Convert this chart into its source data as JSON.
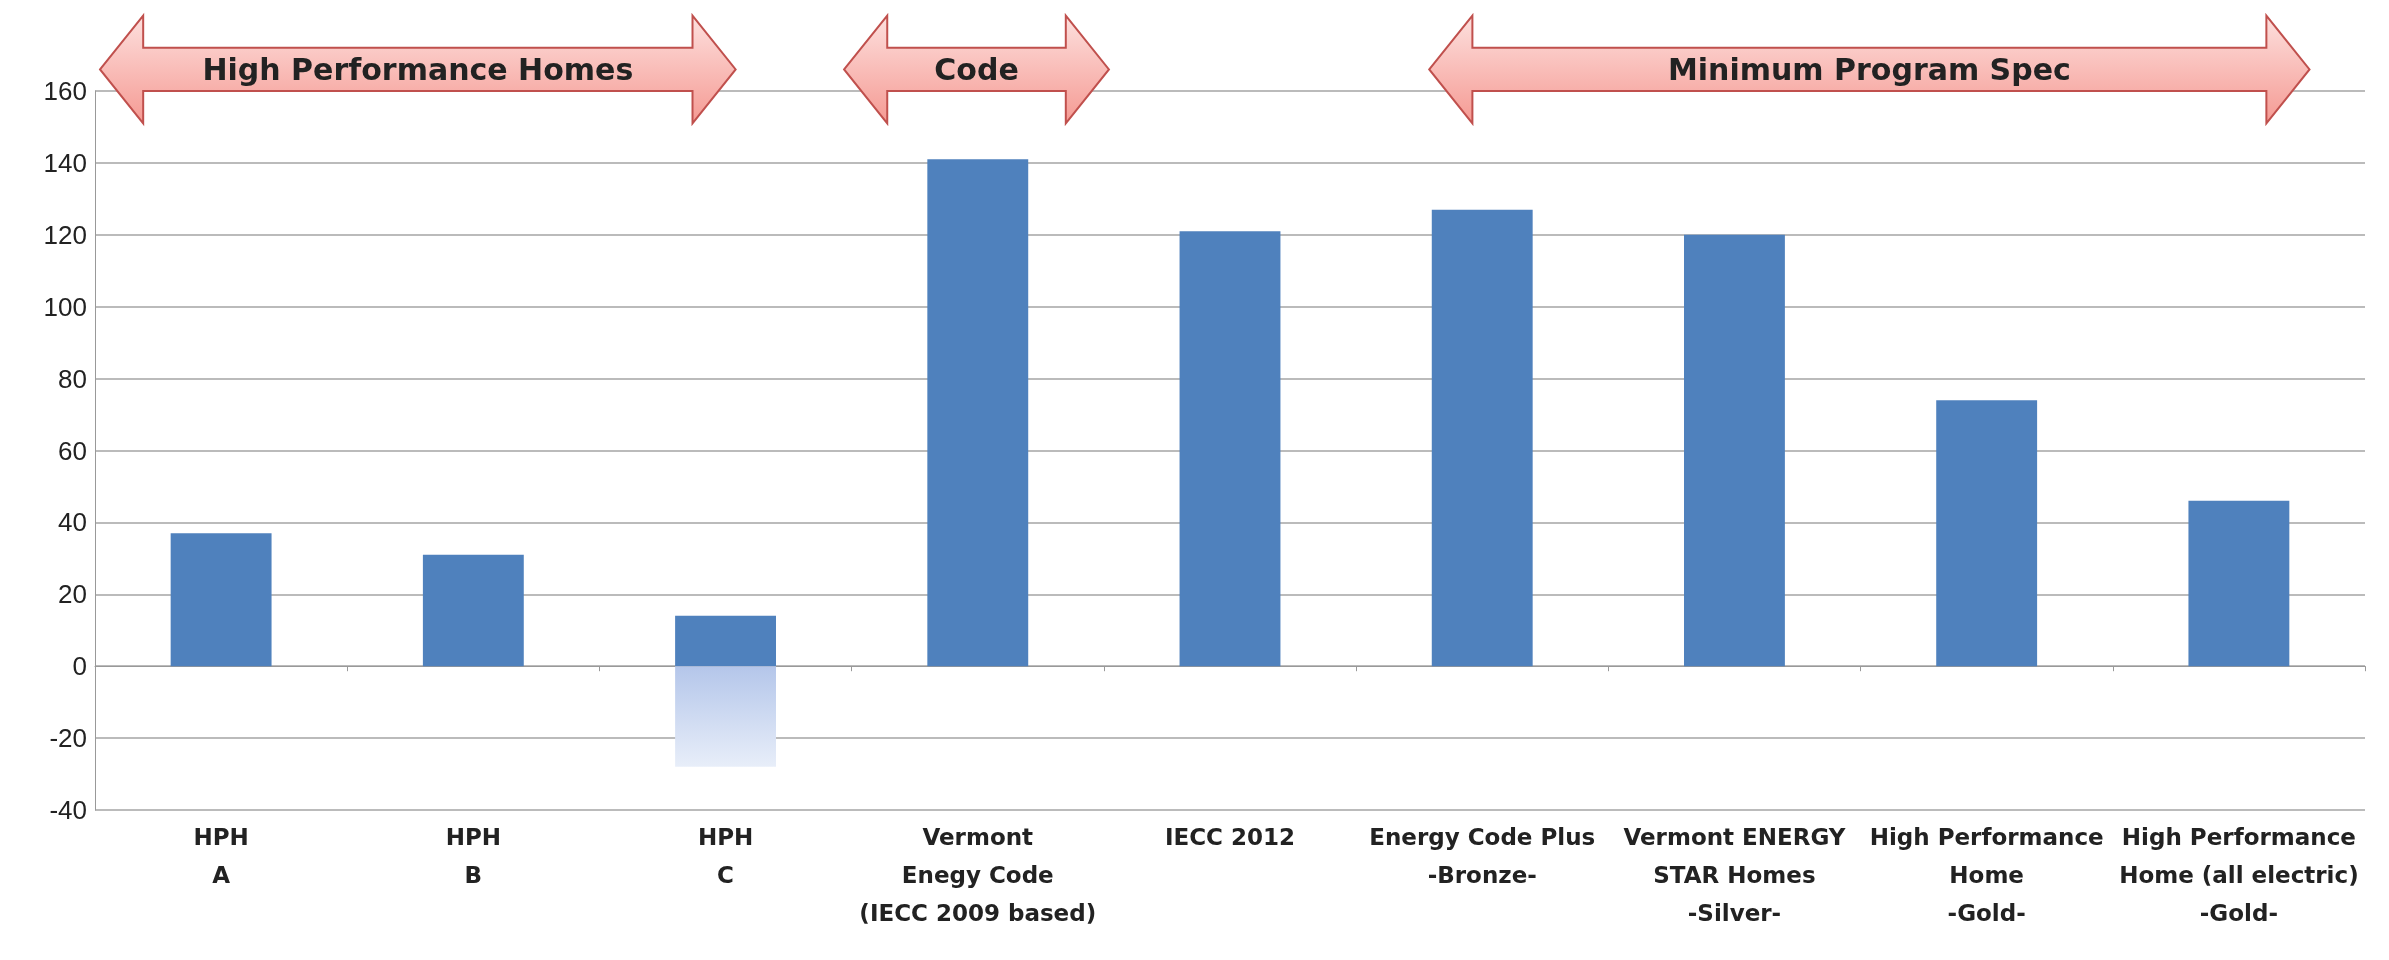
{
  "chart_data": {
    "type": "bar",
    "stacked": true,
    "categories": [
      "HPH\nA",
      "HPH\nB",
      "HPH\nC",
      "Vermont\nEnegy Code\n(IECC 2009 based)",
      "IECC 2012",
      "Energy Code Plus\n-Bronze-",
      "Vermont ENERGY\nSTAR Homes\n-Silver-",
      "High Performance\nHome\n-Gold-",
      "High Performance\nHome (all electric)\n-Gold-"
    ],
    "series": [
      {
        "color": "#4f81bd",
        "values": [
          37,
          31,
          14,
          141,
          121,
          127,
          120,
          74,
          46
        ]
      },
      {
        "color": "#b4c6ea",
        "values": [
          null,
          null,
          -28,
          null,
          null,
          null,
          null,
          null,
          null
        ]
      }
    ],
    "ylim": [
      -40,
      160
    ],
    "yticks": [
      -40,
      -20,
      0,
      20,
      40,
      60,
      80,
      100,
      120,
      140,
      160
    ],
    "grid": "y",
    "annotations": [
      "High Performance Homes",
      "Code",
      "Minimum Program Spec"
    ]
  }
}
